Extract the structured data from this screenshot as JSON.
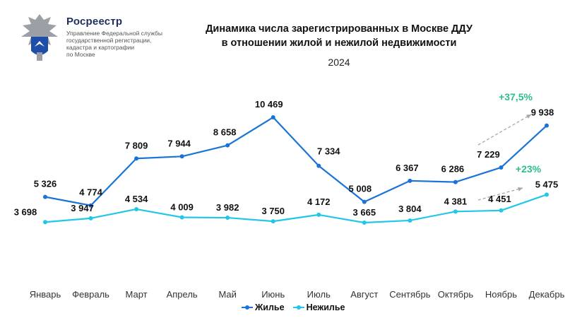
{
  "brand": {
    "name": "Росреестр",
    "subtitle_lines": [
      "Управление Федеральной службы",
      "государственной регистрации,",
      "кадастра и картографии",
      "по Москве"
    ]
  },
  "chart_data": {
    "type": "line",
    "title_lines": [
      "Динамика числа зарегистрированных в Москве ДДУ",
      "в отношении жилой и нежилой недвижимости"
    ],
    "subtitle": "2024",
    "categories": [
      "Январь",
      "Февраль",
      "Март",
      "Апрель",
      "Май",
      "Июнь",
      "Июль",
      "Август",
      "Сентябрь",
      "Октябрь",
      "Ноябрь",
      "Декабрь"
    ],
    "series": [
      {
        "name": "Жилье",
        "color": "#1a73d6",
        "values": [
          5326,
          4774,
          7809,
          7944,
          8658,
          10469,
          7334,
          5008,
          6367,
          6286,
          7229,
          9938
        ],
        "labels": [
          "5 326",
          "4 774",
          "7 809",
          "7 944",
          "8 658",
          "10 469",
          "7 334",
          "5 008",
          "6 367",
          "6 286",
          "7 229",
          "9 938"
        ]
      },
      {
        "name": "Нежилье",
        "color": "#22c7e8",
        "values": [
          3698,
          3947,
          4534,
          4009,
          3982,
          3750,
          4172,
          3665,
          3804,
          4381,
          4451,
          5475
        ],
        "labels": [
          "3 698",
          "3 947",
          "4 534",
          "4 009",
          "3 982",
          "3 750",
          "4 172",
          "3 665",
          "3 804",
          "4 381",
          "4 451",
          "5 475"
        ]
      }
    ],
    "annotations": [
      {
        "text": "+37,5%",
        "series": "Жилье",
        "color": "#2bbf8a"
      },
      {
        "text": "+23%",
        "series": "Нежилье",
        "color": "#2bbf8a"
      }
    ],
    "grid": false,
    "legend": "bottom-center"
  }
}
